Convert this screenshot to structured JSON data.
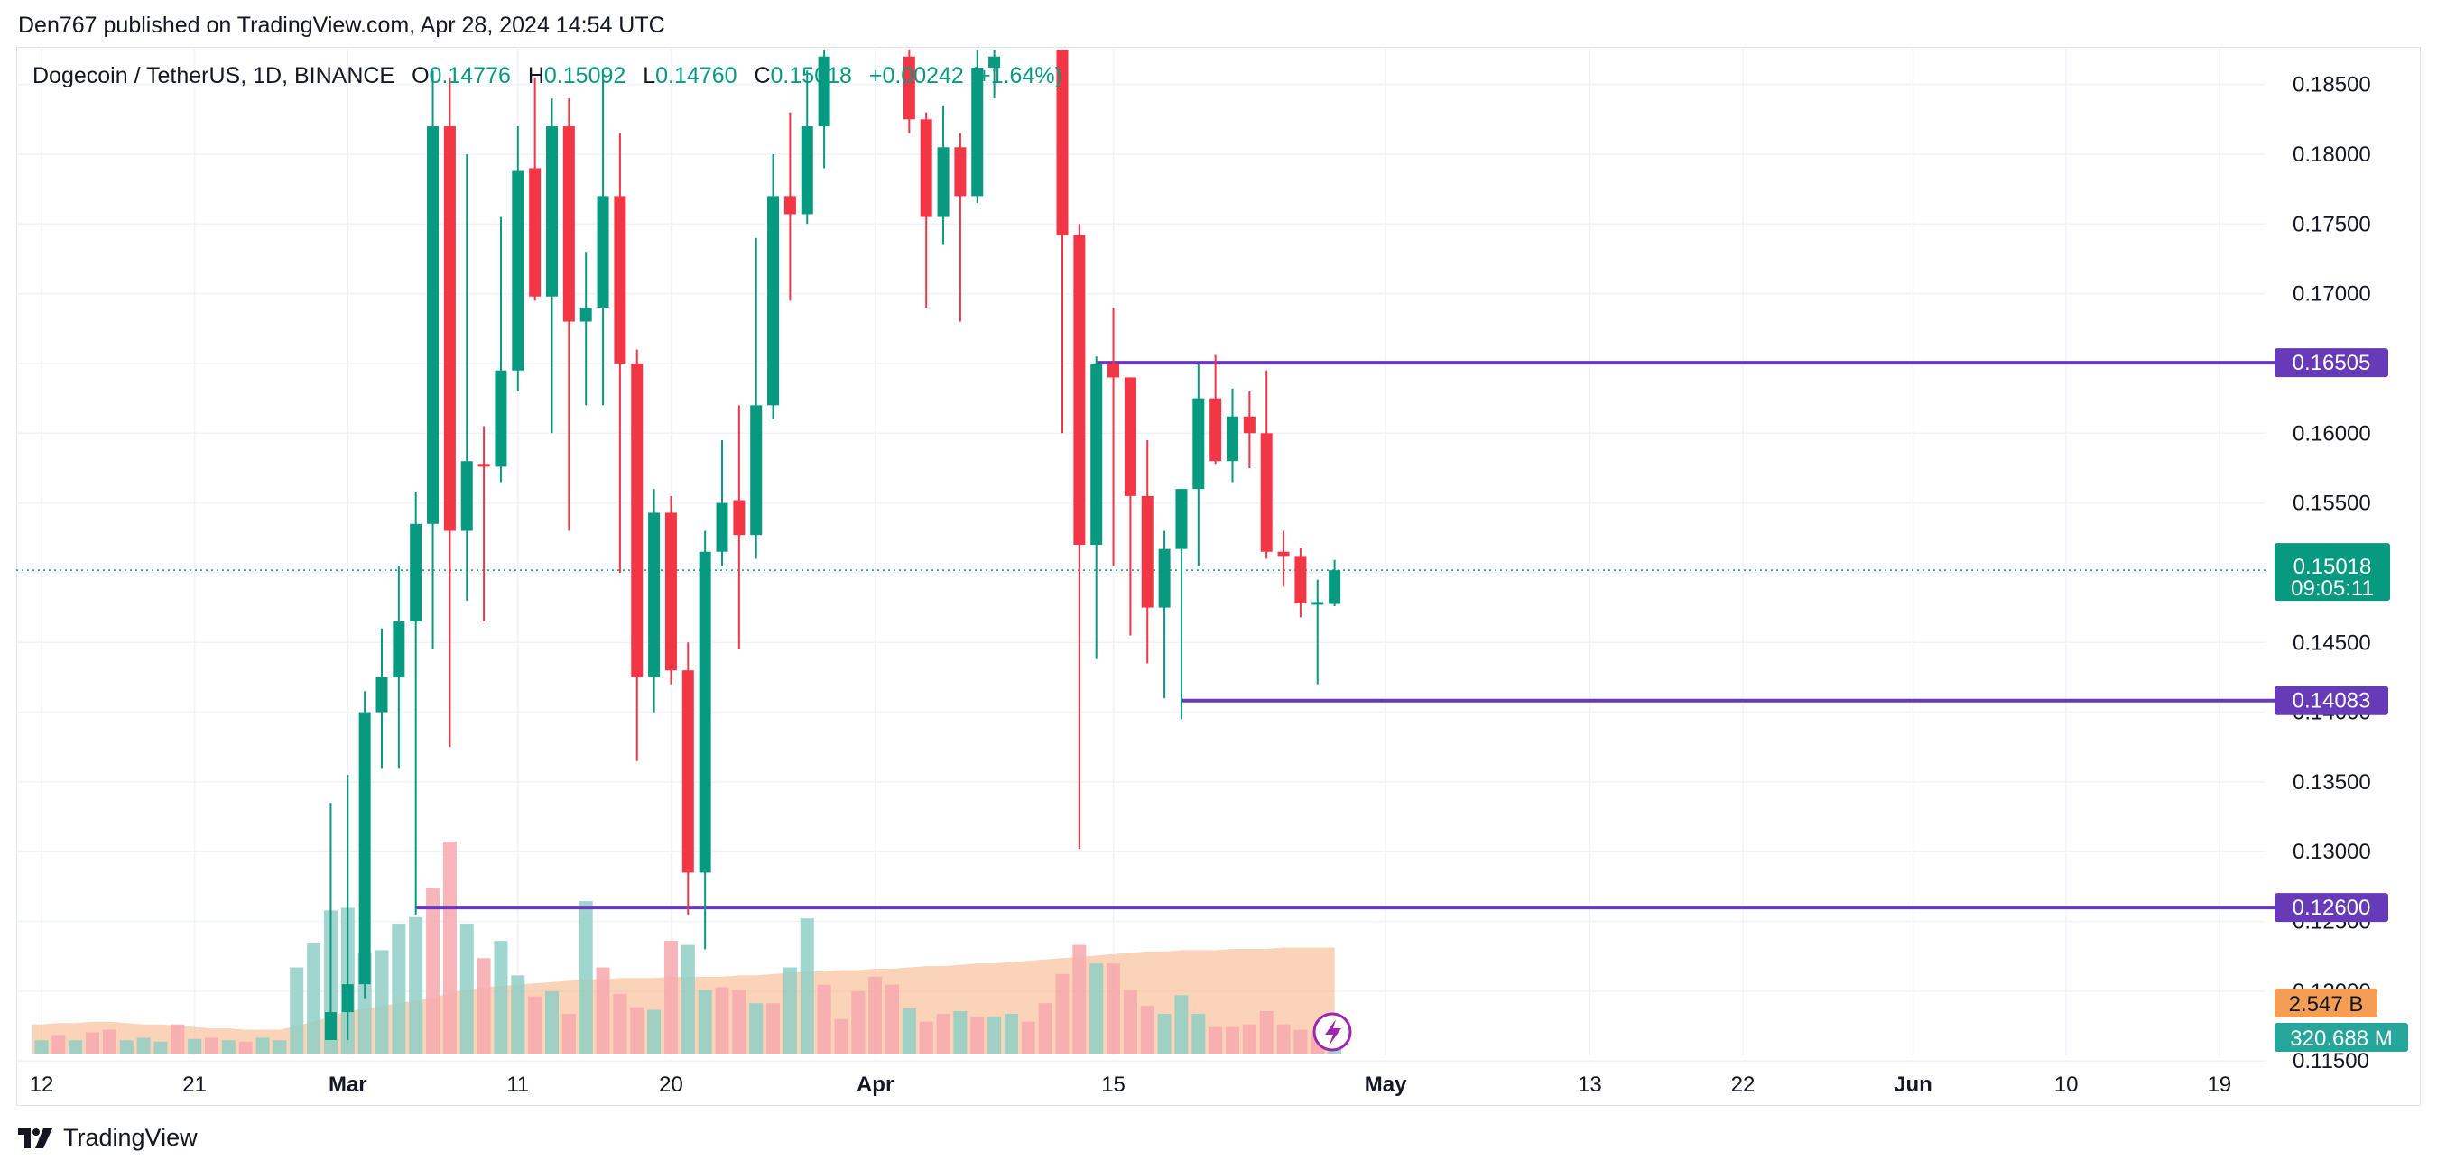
{
  "header": {
    "published": "Den767 published on TradingView.com, Apr 28, 2024 14:54 UTC"
  },
  "legend": {
    "symbol": "Dogecoin / TetherUS, 1D, BINANCE",
    "o_label": "O",
    "o_value": "0.14776",
    "h_label": "H",
    "h_value": "0.15092",
    "l_label": "L",
    "l_value": "0.14760",
    "c_label": "C",
    "c_value": "0.15018",
    "change": "+0.00242 (+1.64%)"
  },
  "footer": {
    "brand": "TradingView"
  },
  "colors": {
    "up": "#089981",
    "down": "#f23645",
    "vol_up": "#8fcfc4",
    "vol_down": "#f7a8ad",
    "vol_ma": "#f9b58a",
    "level_line": "#673ab7",
    "grid": "#f0f3fa"
  },
  "chart_data": {
    "type": "candlestick",
    "title": "Dogecoin / TetherUS, 1D, BINANCE",
    "ylim": [
      0.1165,
      0.1875
    ],
    "y_ticks": [
      "0.18500",
      "0.18000",
      "0.17500",
      "0.17000",
      "0.16500",
      "0.16000",
      "0.15500",
      "0.15000",
      "0.14500",
      "0.14000",
      "0.13500",
      "0.13000",
      "0.12500",
      "0.12000",
      "0.11500"
    ],
    "x_ticks": [
      {
        "label": "12",
        "day": 0,
        "bold": false
      },
      {
        "label": "21",
        "day": 9,
        "bold": false
      },
      {
        "label": "Mar",
        "day": 18,
        "bold": true
      },
      {
        "label": "11",
        "day": 28,
        "bold": false
      },
      {
        "label": "20",
        "day": 37,
        "bold": false
      },
      {
        "label": "Apr",
        "day": 49,
        "bold": true
      },
      {
        "label": "15",
        "day": 63,
        "bold": false
      },
      {
        "label": "May",
        "day": 79,
        "bold": true
      },
      {
        "label": "13",
        "day": 91,
        "bold": false
      },
      {
        "label": "22",
        "day": 100,
        "bold": false
      },
      {
        "label": "Jun",
        "day": 110,
        "bold": true
      },
      {
        "label": "10",
        "day": 119,
        "bold": false
      },
      {
        "label": "19",
        "day": 128,
        "bold": false
      }
    ],
    "candles": [
      {
        "d": 17,
        "o": 0.1165,
        "h": 0.1335,
        "l": 0.1165,
        "c": 0.1185
      },
      {
        "d": 18,
        "o": 0.1185,
        "h": 0.1355,
        "l": 0.1165,
        "c": 0.1205
      },
      {
        "d": 19,
        "o": 0.1205,
        "h": 0.1415,
        "l": 0.1195,
        "c": 0.14
      },
      {
        "d": 20,
        "o": 0.14,
        "h": 0.146,
        "l": 0.136,
        "c": 0.1425
      },
      {
        "d": 21,
        "o": 0.1425,
        "h": 0.1505,
        "l": 0.136,
        "c": 0.1465
      },
      {
        "d": 22,
        "o": 0.1465,
        "h": 0.1558,
        "l": 0.1255,
        "c": 0.1535
      },
      {
        "d": 23,
        "o": 0.1535,
        "h": 0.186,
        "l": 0.1445,
        "c": 0.182
      },
      {
        "d": 24,
        "o": 0.182,
        "h": 0.1855,
        "l": 0.1375,
        "c": 0.153
      },
      {
        "d": 25,
        "o": 0.153,
        "h": 0.18,
        "l": 0.148,
        "c": 0.158
      },
      {
        "d": 26,
        "o": 0.1578,
        "h": 0.1605,
        "l": 0.1465,
        "c": 0.1576
      },
      {
        "d": 27,
        "o": 0.1576,
        "h": 0.1755,
        "l": 0.1565,
        "c": 0.1645
      },
      {
        "d": 28,
        "o": 0.1645,
        "h": 0.182,
        "l": 0.163,
        "c": 0.1788
      },
      {
        "d": 29,
        "o": 0.179,
        "h": 0.1855,
        "l": 0.1695,
        "c": 0.1698
      },
      {
        "d": 30,
        "o": 0.1698,
        "h": 0.184,
        "l": 0.16,
        "c": 0.182
      },
      {
        "d": 31,
        "o": 0.182,
        "h": 0.184,
        "l": 0.153,
        "c": 0.168
      },
      {
        "d": 32,
        "o": 0.168,
        "h": 0.173,
        "l": 0.162,
        "c": 0.169
      },
      {
        "d": 33,
        "o": 0.169,
        "h": 0.186,
        "l": 0.162,
        "c": 0.177
      },
      {
        "d": 34,
        "o": 0.177,
        "h": 0.1815,
        "l": 0.15,
        "c": 0.165
      },
      {
        "d": 35,
        "o": 0.165,
        "h": 0.166,
        "l": 0.1365,
        "c": 0.1425
      },
      {
        "d": 36,
        "o": 0.1425,
        "h": 0.156,
        "l": 0.14,
        "c": 0.1543
      },
      {
        "d": 37,
        "o": 0.1543,
        "h": 0.1555,
        "l": 0.142,
        "c": 0.143
      },
      {
        "d": 38,
        "o": 0.143,
        "h": 0.145,
        "l": 0.1255,
        "c": 0.1285
      },
      {
        "d": 39,
        "o": 0.1285,
        "h": 0.153,
        "l": 0.123,
        "c": 0.1515
      },
      {
        "d": 40,
        "o": 0.1515,
        "h": 0.1595,
        "l": 0.1505,
        "c": 0.155
      },
      {
        "d": 41,
        "o": 0.1552,
        "h": 0.162,
        "l": 0.1445,
        "c": 0.1527
      },
      {
        "d": 42,
        "o": 0.1527,
        "h": 0.174,
        "l": 0.151,
        "c": 0.162
      },
      {
        "d": 43,
        "o": 0.162,
        "h": 0.18,
        "l": 0.161,
        "c": 0.177
      },
      {
        "d": 44,
        "o": 0.177,
        "h": 0.183,
        "l": 0.1695,
        "c": 0.1757
      },
      {
        "d": 45,
        "o": 0.1757,
        "h": 0.186,
        "l": 0.175,
        "c": 0.182
      },
      {
        "d": 46,
        "o": 0.182,
        "h": 0.1875,
        "l": 0.179,
        "c": 0.187
      },
      {
        "d": 51,
        "o": 0.187,
        "h": 0.1875,
        "l": 0.1815,
        "c": 0.1825
      },
      {
        "d": 52,
        "o": 0.1825,
        "h": 0.183,
        "l": 0.169,
        "c": 0.1755
      },
      {
        "d": 53,
        "o": 0.1755,
        "h": 0.1835,
        "l": 0.1735,
        "c": 0.1805
      },
      {
        "d": 54,
        "o": 0.1805,
        "h": 0.1815,
        "l": 0.168,
        "c": 0.177
      },
      {
        "d": 55,
        "o": 0.177,
        "h": 0.1875,
        "l": 0.1765,
        "c": 0.1862
      },
      {
        "d": 56,
        "o": 0.1862,
        "h": 0.1875,
        "l": 0.184,
        "c": 0.187
      },
      {
        "d": 60,
        "o": 0.1875,
        "h": 0.1875,
        "l": 0.16,
        "c": 0.1742
      },
      {
        "d": 61,
        "o": 0.1742,
        "h": 0.175,
        "l": 0.1302,
        "c": 0.152
      },
      {
        "d": 62,
        "o": 0.152,
        "h": 0.1655,
        "l": 0.1438,
        "c": 0.165
      },
      {
        "d": 63,
        "o": 0.165,
        "h": 0.169,
        "l": 0.1505,
        "c": 0.164
      },
      {
        "d": 64,
        "o": 0.164,
        "h": 0.164,
        "l": 0.1455,
        "c": 0.1555
      },
      {
        "d": 65,
        "o": 0.1555,
        "h": 0.1595,
        "l": 0.1435,
        "c": 0.1475
      },
      {
        "d": 66,
        "o": 0.1475,
        "h": 0.153,
        "l": 0.141,
        "c": 0.1517
      },
      {
        "d": 67,
        "o": 0.1517,
        "h": 0.156,
        "l": 0.1395,
        "c": 0.156
      },
      {
        "d": 68,
        "o": 0.156,
        "h": 0.165,
        "l": 0.1505,
        "c": 0.1625
      },
      {
        "d": 69,
        "o": 0.1625,
        "h": 0.1656,
        "l": 0.1578,
        "c": 0.158
      },
      {
        "d": 70,
        "o": 0.158,
        "h": 0.1632,
        "l": 0.1565,
        "c": 0.1612
      },
      {
        "d": 71,
        "o": 0.1612,
        "h": 0.163,
        "l": 0.1575,
        "c": 0.16
      },
      {
        "d": 72,
        "o": 0.16,
        "h": 0.1645,
        "l": 0.151,
        "c": 0.1515
      },
      {
        "d": 73,
        "o": 0.1515,
        "h": 0.153,
        "l": 0.149,
        "c": 0.1512
      },
      {
        "d": 74,
        "o": 0.1512,
        "h": 0.1518,
        "l": 0.1468,
        "c": 0.1478
      },
      {
        "d": 75,
        "o": 0.1478,
        "h": 0.1495,
        "l": 0.142,
        "c": 0.1478
      },
      {
        "d": 76,
        "o": 0.14776,
        "h": 0.15092,
        "l": 0.1476,
        "c": 0.15018
      }
    ],
    "volume": {
      "max": 1.6,
      "bars": [
        {
          "d": 0,
          "v": 0.1,
          "up": true
        },
        {
          "d": 1,
          "v": 0.14,
          "up": false
        },
        {
          "d": 2,
          "v": 0.1,
          "up": true
        },
        {
          "d": 3,
          "v": 0.16,
          "up": false
        },
        {
          "d": 4,
          "v": 0.18,
          "up": false
        },
        {
          "d": 5,
          "v": 0.1,
          "up": true
        },
        {
          "d": 6,
          "v": 0.12,
          "up": true
        },
        {
          "d": 7,
          "v": 0.09,
          "up": true
        },
        {
          "d": 8,
          "v": 0.22,
          "up": false
        },
        {
          "d": 9,
          "v": 0.11,
          "up": true
        },
        {
          "d": 10,
          "v": 0.12,
          "up": false
        },
        {
          "d": 11,
          "v": 0.1,
          "up": true
        },
        {
          "d": 12,
          "v": 0.09,
          "up": false
        },
        {
          "d": 13,
          "v": 0.12,
          "up": true
        },
        {
          "d": 14,
          "v": 0.1,
          "up": true
        },
        {
          "d": 15,
          "v": 0.65,
          "up": true
        },
        {
          "d": 16,
          "v": 0.83,
          "up": true
        },
        {
          "d": 17,
          "v": 1.08,
          "up": true
        },
        {
          "d": 18,
          "v": 1.1,
          "up": true
        },
        {
          "d": 19,
          "v": 0.76,
          "up": true
        },
        {
          "d": 20,
          "v": 0.78,
          "up": true
        },
        {
          "d": 21,
          "v": 0.98,
          "up": true
        },
        {
          "d": 22,
          "v": 1.03,
          "up": true
        },
        {
          "d": 23,
          "v": 1.25,
          "up": false
        },
        {
          "d": 24,
          "v": 1.98,
          "up": false
        },
        {
          "d": 25,
          "v": 0.98,
          "up": true
        },
        {
          "d": 26,
          "v": 0.72,
          "up": false
        },
        {
          "d": 27,
          "v": 0.85,
          "up": true
        },
        {
          "d": 28,
          "v": 0.59,
          "up": true
        },
        {
          "d": 29,
          "v": 0.43,
          "up": false
        },
        {
          "d": 30,
          "v": 0.47,
          "up": true
        },
        {
          "d": 31,
          "v": 0.3,
          "up": false
        },
        {
          "d": 32,
          "v": 1.15,
          "up": true
        },
        {
          "d": 33,
          "v": 0.65,
          "up": false
        },
        {
          "d": 34,
          "v": 0.45,
          "up": false
        },
        {
          "d": 35,
          "v": 0.35,
          "up": false
        },
        {
          "d": 36,
          "v": 0.33,
          "up": true
        },
        {
          "d": 37,
          "v": 0.85,
          "up": false
        },
        {
          "d": 38,
          "v": 0.82,
          "up": true
        },
        {
          "d": 39,
          "v": 0.48,
          "up": true
        },
        {
          "d": 40,
          "v": 0.5,
          "up": false
        },
        {
          "d": 41,
          "v": 0.48,
          "up": false
        },
        {
          "d": 42,
          "v": 0.38,
          "up": true
        },
        {
          "d": 43,
          "v": 0.38,
          "up": false
        },
        {
          "d": 44,
          "v": 0.65,
          "up": true
        },
        {
          "d": 45,
          "v": 1.02,
          "up": true
        },
        {
          "d": 46,
          "v": 0.52,
          "up": false
        },
        {
          "d": 47,
          "v": 0.26,
          "up": false
        },
        {
          "d": 48,
          "v": 0.47,
          "up": false
        },
        {
          "d": 49,
          "v": 0.58,
          "up": false
        },
        {
          "d": 50,
          "v": 0.52,
          "up": false
        },
        {
          "d": 51,
          "v": 0.34,
          "up": true
        },
        {
          "d": 52,
          "v": 0.24,
          "up": false
        },
        {
          "d": 53,
          "v": 0.3,
          "up": false
        },
        {
          "d": 54,
          "v": 0.32,
          "up": true
        },
        {
          "d": 55,
          "v": 0.28,
          "up": false
        },
        {
          "d": 56,
          "v": 0.28,
          "up": true
        },
        {
          "d": 57,
          "v": 0.3,
          "up": true
        },
        {
          "d": 58,
          "v": 0.24,
          "up": false
        },
        {
          "d": 59,
          "v": 0.38,
          "up": false
        },
        {
          "d": 60,
          "v": 0.6,
          "up": false
        },
        {
          "d": 61,
          "v": 0.82,
          "up": false
        },
        {
          "d": 62,
          "v": 0.68,
          "up": true
        },
        {
          "d": 63,
          "v": 0.68,
          "up": false
        },
        {
          "d": 64,
          "v": 0.48,
          "up": false
        },
        {
          "d": 65,
          "v": 0.36,
          "up": false
        },
        {
          "d": 66,
          "v": 0.3,
          "up": true
        },
        {
          "d": 67,
          "v": 0.44,
          "up": true
        },
        {
          "d": 68,
          "v": 0.3,
          "up": true
        },
        {
          "d": 69,
          "v": 0.2,
          "up": false
        },
        {
          "d": 70,
          "v": 0.2,
          "up": false
        },
        {
          "d": 71,
          "v": 0.22,
          "up": false
        },
        {
          "d": 72,
          "v": 0.32,
          "up": false
        },
        {
          "d": 73,
          "v": 0.22,
          "up": false
        },
        {
          "d": 74,
          "v": 0.18,
          "up": false
        },
        {
          "d": 75,
          "v": 0.15,
          "up": false
        },
        {
          "d": 76,
          "v": 0.12,
          "up": true
        }
      ],
      "ma": [
        0.22,
        0.23,
        0.23,
        0.24,
        0.24,
        0.23,
        0.22,
        0.22,
        0.21,
        0.2,
        0.19,
        0.19,
        0.18,
        0.18,
        0.18,
        0.21,
        0.24,
        0.28,
        0.32,
        0.34,
        0.36,
        0.38,
        0.4,
        0.42,
        0.46,
        0.48,
        0.5,
        0.51,
        0.52,
        0.53,
        0.54,
        0.55,
        0.56,
        0.56,
        0.57,
        0.57,
        0.57,
        0.58,
        0.58,
        0.58,
        0.58,
        0.59,
        0.59,
        0.6,
        0.61,
        0.62,
        0.62,
        0.63,
        0.63,
        0.64,
        0.64,
        0.65,
        0.66,
        0.66,
        0.67,
        0.68,
        0.68,
        0.69,
        0.7,
        0.71,
        0.72,
        0.73,
        0.74,
        0.75,
        0.76,
        0.77,
        0.77,
        0.78,
        0.78,
        0.78,
        0.79,
        0.79,
        0.79,
        0.8,
        0.8,
        0.8,
        0.8
      ]
    },
    "levels": [
      {
        "value": 0.16505,
        "start_day": 62,
        "label": "0.16505"
      },
      {
        "value": 0.14083,
        "start_day": 67,
        "label": "0.14083"
      },
      {
        "value": 0.126,
        "start_day": 22,
        "label": "0.12600"
      }
    ],
    "last_price": {
      "value": 0.15018,
      "label": "0.15018",
      "countdown": "09:05:11"
    },
    "volume_tags": [
      {
        "label": "2.547 B",
        "color": "#f59d55"
      },
      {
        "label": "320.688 M",
        "color": "#26a69a"
      }
    ]
  }
}
